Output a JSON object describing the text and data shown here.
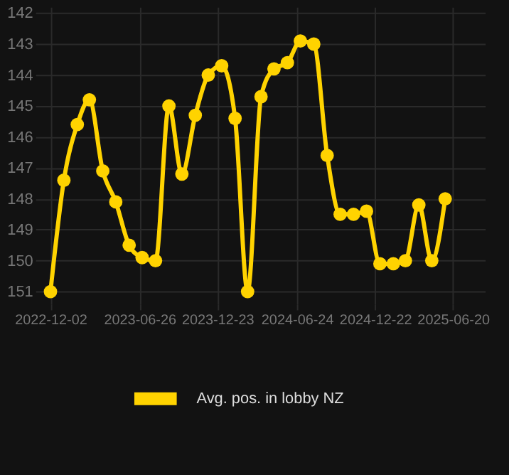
{
  "chart_data": {
    "type": "line",
    "x": [
      "2022-12-02",
      "2023-01-02",
      "2023-02-02",
      "2023-03-02",
      "2023-04-02",
      "2023-05-02",
      "2023-06-02",
      "2023-07-02",
      "2023-08-02",
      "2023-09-02",
      "2023-10-02",
      "2023-11-02",
      "2023-12-02",
      "2024-01-02",
      "2024-02-02",
      "2024-03-02",
      "2024-04-02",
      "2024-05-02",
      "2024-06-02",
      "2024-07-02",
      "2024-08-02",
      "2024-09-02",
      "2024-10-02",
      "2024-11-02",
      "2024-12-02",
      "2025-01-02",
      "2025-02-02",
      "2025-03-02",
      "2025-04-02",
      "2025-05-02",
      "2025-06-02"
    ],
    "series": [
      {
        "name": "Avg. pos. in lobby NZ",
        "color": "#ffd300",
        "values": [
          151.0,
          147.4,
          145.6,
          144.8,
          147.1,
          148.1,
          149.5,
          149.9,
          150.0,
          145.0,
          147.2,
          145.3,
          144.0,
          143.7,
          145.4,
          151.0,
          144.7,
          143.8,
          143.6,
          142.9,
          143.0,
          146.6,
          148.5,
          148.5,
          148.4,
          150.1,
          150.1,
          150.0,
          148.2,
          150.0,
          148.0
        ]
      }
    ],
    "ylim": [
      151.4,
      141.8
    ],
    "yticks": [
      142,
      143,
      144,
      145,
      146,
      147,
      148,
      149,
      150,
      151
    ],
    "xlim": [
      "2022-10-28",
      "2025-09-02"
    ],
    "xticks": [
      "2022-12-02",
      "2023-06-26",
      "2023-12-23",
      "2024-06-24",
      "2024-12-22",
      "2025-06-20"
    ],
    "grid": true,
    "legend": "bottom",
    "marker": "circle",
    "line_style": "solid"
  }
}
